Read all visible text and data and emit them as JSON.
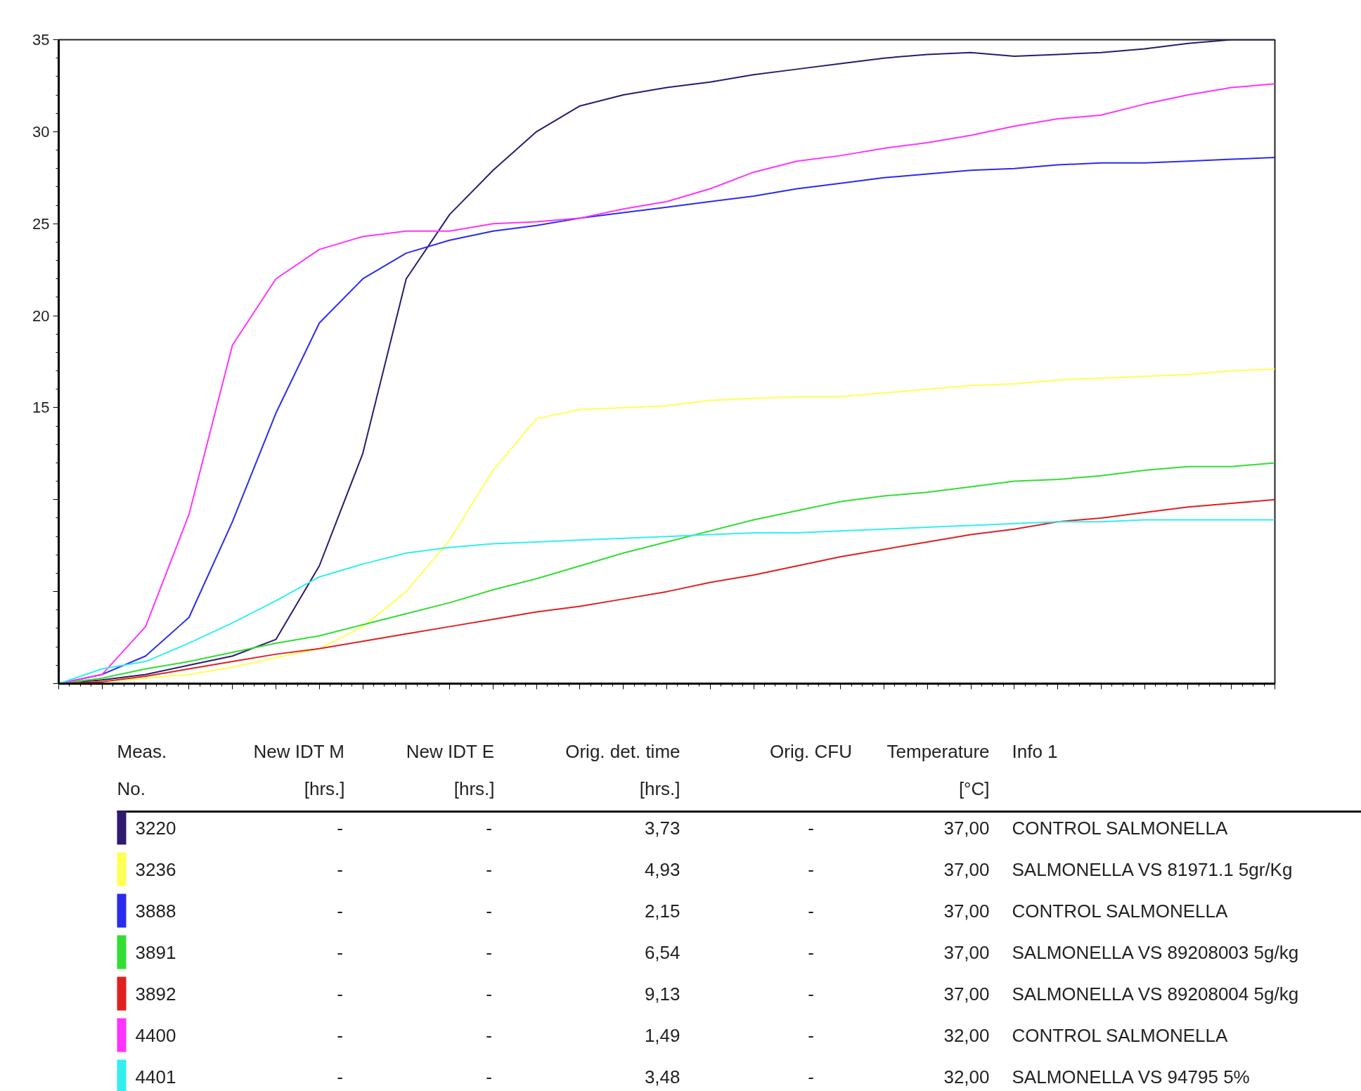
{
  "chart_data": {
    "type": "line",
    "categories": [
      null,
      null,
      null,
      null,
      null,
      null,
      null,
      null,
      null,
      null,
      null,
      null,
      null,
      null,
      null,
      null,
      null,
      null,
      null,
      null,
      null,
      null,
      null,
      null,
      null,
      null,
      null,
      null,
      null
    ],
    "series": [
      {
        "name": "3220",
        "color": "#2e1a6e",
        "values": [
          0,
          0.2,
          0.5,
          1.0,
          1.5,
          2.4,
          6.4,
          12.5,
          22,
          25.5,
          27.9,
          30.0,
          31.4,
          32.0,
          32.4,
          32.7,
          33.1,
          33.4,
          33.7,
          34.0,
          34.2,
          34.3,
          34.1,
          34.2,
          34.3,
          34.5,
          34.8,
          35,
          35
        ]
      },
      {
        "name": "3236",
        "color": "#ffff55",
        "values": [
          0,
          0.1,
          0.3,
          0.5,
          0.9,
          1.4,
          1.9,
          3.1,
          5.0,
          7.8,
          11.6,
          14.4,
          14.9,
          15.0,
          15.1,
          15.4,
          15.5,
          15.6,
          15.6,
          15.8,
          16.0,
          16.2,
          16.3,
          16.5,
          16.6,
          16.7,
          16.8,
          17.0,
          17.1
        ]
      },
      {
        "name": "3888",
        "color": "#2b2bf0",
        "values": [
          0,
          0.5,
          1.5,
          3.6,
          8.8,
          14.7,
          19.6,
          22.0,
          23.4,
          24.1,
          24.6,
          24.9,
          25.3,
          25.6,
          25.9,
          26.2,
          26.5,
          26.9,
          27.2,
          27.5,
          27.7,
          27.9,
          28.0,
          28.2,
          28.3,
          28.3,
          28.4,
          28.5,
          28.6
        ]
      },
      {
        "name": "3891",
        "color": "#33dd33",
        "values": [
          0,
          0.3,
          0.8,
          1.2,
          1.7,
          2.2,
          2.6,
          3.2,
          3.8,
          4.4,
          5.1,
          5.7,
          6.4,
          7.1,
          7.7,
          8.3,
          8.9,
          9.4,
          9.9,
          10.2,
          10.4,
          10.7,
          11.0,
          11.1,
          11.3,
          11.6,
          11.8,
          11.8,
          12.0
        ]
      },
      {
        "name": "3892",
        "color": "#e02020",
        "values": [
          0,
          0.1,
          0.4,
          0.8,
          1.2,
          1.6,
          1.9,
          2.3,
          2.7,
          3.1,
          3.5,
          3.9,
          4.2,
          4.6,
          5.0,
          5.5,
          5.9,
          6.4,
          6.9,
          7.3,
          7.7,
          8.1,
          8.4,
          8.8,
          9.0,
          9.3,
          9.6,
          9.8,
          10.0
        ]
      },
      {
        "name": "4400",
        "color": "#ff33ff",
        "values": [
          0,
          0.5,
          3.1,
          9.2,
          18.4,
          22,
          23.6,
          24.3,
          24.6,
          24.6,
          25.0,
          25.1,
          25.3,
          25.8,
          26.2,
          26.9,
          27.8,
          28.4,
          28.7,
          29.1,
          29.4,
          29.8,
          30.3,
          30.7,
          30.9,
          31.5,
          32.0,
          32.4,
          32.6
        ]
      },
      {
        "name": "4401",
        "color": "#33eeee",
        "values": [
          0,
          0.8,
          1.2,
          2.2,
          3.3,
          4.5,
          5.8,
          6.5,
          7.1,
          7.4,
          7.6,
          7.7,
          7.8,
          7.9,
          8.0,
          8.1,
          8.2,
          8.2,
          8.3,
          8.4,
          8.5,
          8.6,
          8.7,
          8.8,
          8.8,
          8.9,
          8.9,
          8.9,
          8.9
        ]
      }
    ],
    "ylim": [
      0,
      35
    ],
    "yticks": [
      {
        "value": 0,
        "label": null
      },
      {
        "value": 5,
        "label": null
      },
      {
        "value": 10,
        "label": null
      },
      15,
      20,
      25,
      30,
      35
    ],
    "tick_labels": "y",
    "grid": false,
    "legend": "bottom",
    "line_style": "solid",
    "annotations": [
      "Meas.\nNo.",
      "New IDT M\n[hrs.]",
      "New IDT E\n[hrs.]",
      "Orig. det. time\n[hrs.]",
      "Orig. CFU",
      "Temperature\n[°C]",
      "Info 1",
      "-",
      "-",
      "3,73",
      "-",
      "37,00",
      "CONTROL SALMONELLA",
      "-",
      "-",
      "4,93",
      "-",
      "37,00",
      "SALMONELLA VS 81971.1 5gr/Kg",
      "-",
      "-",
      "2,15",
      "-",
      "37,00",
      "CONTROL SALMONELLA",
      "-",
      "-",
      "6,54",
      "-",
      "37,00",
      "SALMONELLA VS 89208003 5g/kg",
      "-",
      "-",
      "9,13",
      "-",
      "37,00",
      "SALMONELLA VS 89208004 5g/kg",
      "-",
      "-",
      "1,49",
      "-",
      "32,00",
      "CONTROL SALMONELLA",
      "-",
      "-",
      "3,48",
      "-",
      "32,00",
      "SALMONELLA  VS 94795 5%"
    ]
  }
}
